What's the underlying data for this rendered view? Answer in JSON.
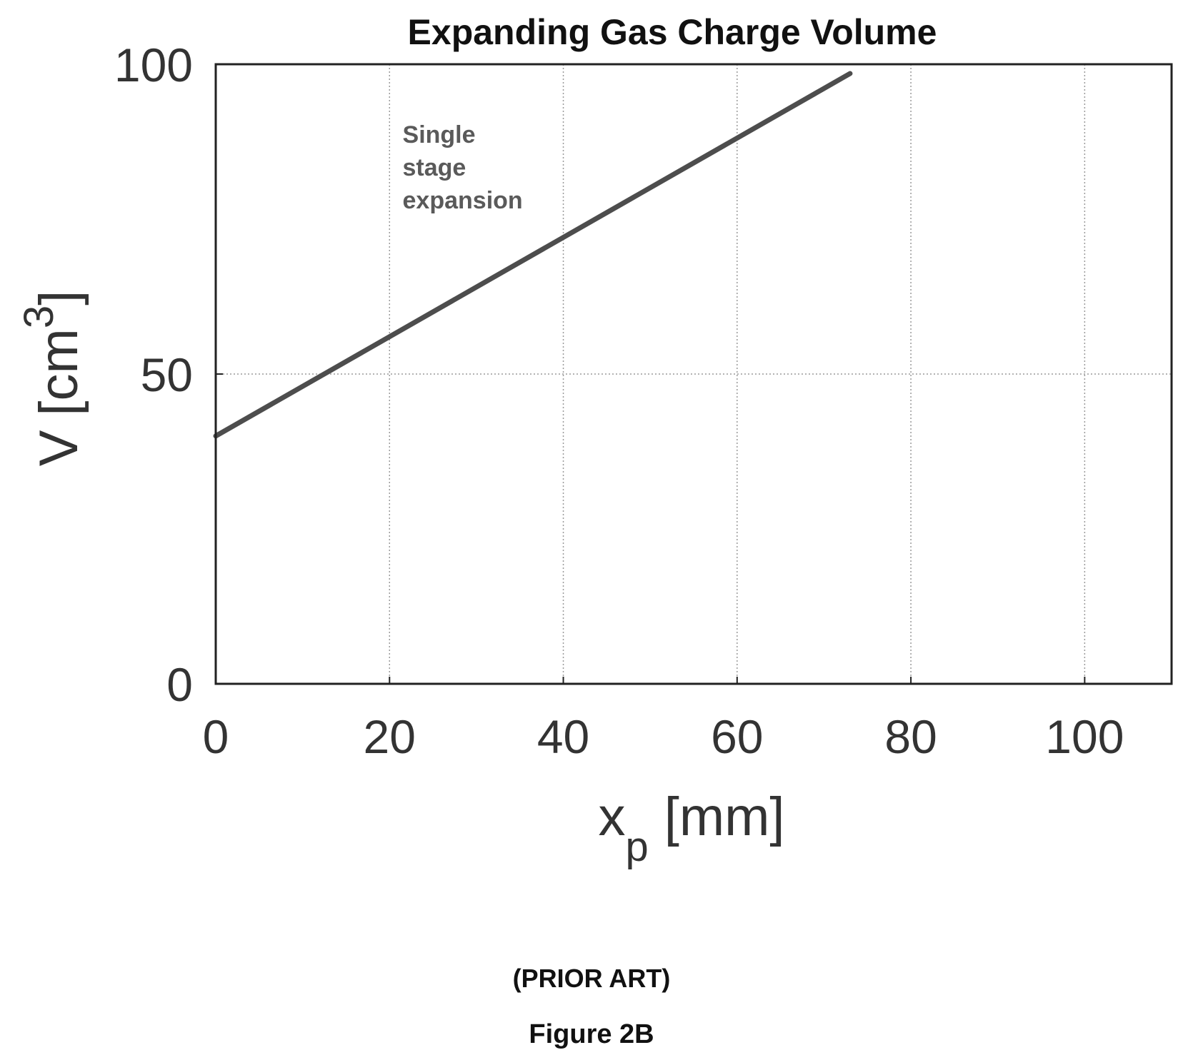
{
  "chart_data": {
    "type": "line",
    "title": "Expanding Gas Charge Volume",
    "xlabel": {
      "main": "x",
      "subscript": "p",
      "unit": "[mm]"
    },
    "ylabel": {
      "main": "V",
      "unit_open": "[cm",
      "superscript": "3",
      "unit_close": "]"
    },
    "xlim": [
      0,
      110
    ],
    "ylim": [
      0,
      100
    ],
    "xticks": [
      0,
      20,
      40,
      60,
      80,
      100
    ],
    "yticks": [
      0,
      50,
      100
    ],
    "grid": true,
    "series": [
      {
        "x": [
          0,
          73
        ],
        "y": [
          40,
          98.5
        ]
      }
    ],
    "annotations": [
      {
        "lines": [
          "Single",
          "stage",
          "expansion"
        ],
        "x": 21.5,
        "y": 85
      }
    ],
    "colors": {
      "line": "#4d4d4d",
      "annotation": "#5a5a5a",
      "axes": "#222222",
      "grid": "#9a9a9a"
    }
  },
  "captions": {
    "prior_art": "(PRIOR ART)",
    "figure": "Figure 2B"
  }
}
